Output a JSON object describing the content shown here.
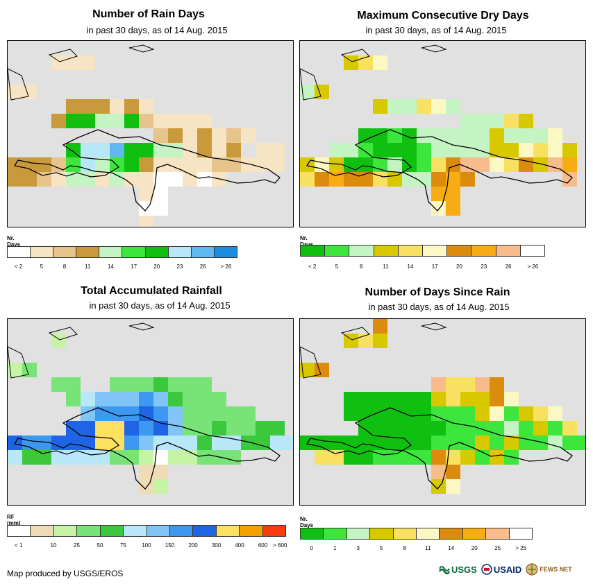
{
  "panels": [
    {
      "title": "Number of Rain Days",
      "subtitle": "in past 30 days, as of 14 Aug. 2015",
      "legend_title": "Nr. Days",
      "legend_colors": [
        "#ffffff",
        "#f6e4c4",
        "#e6c48c",
        "#c89a3c",
        "#c4f4c4",
        "#3ce63c",
        "#10c010",
        "#b8e8f8",
        "#60b8f0",
        "#1c8ce0"
      ],
      "legend_labels": [
        "< 2",
        "5",
        "8",
        "11",
        "14",
        "17",
        "20",
        "23",
        "26",
        "> 26"
      ],
      "ticks_mode": "center"
    },
    {
      "title": "Maximum Consecutive Dry Days",
      "subtitle": "in past 30 days, as of 14 Aug. 2015",
      "legend_title": "Nr. Days",
      "legend_colors": [
        "#10c010",
        "#3ce63c",
        "#c4f4c4",
        "#d8c800",
        "#f8e060",
        "#fcf8c4",
        "#dc8c0c",
        "#f8ac14",
        "#f8bc8c",
        "#ffffff"
      ],
      "legend_labels": [
        "< 2",
        "5",
        "8",
        "11",
        "14",
        "17",
        "20",
        "23",
        "26",
        "> 26"
      ],
      "ticks_mode": "center"
    },
    {
      "title": "Total Accumulated Rainfall",
      "subtitle": "in past 30 days, as of 14 Aug. 2015",
      "legend_title": "RF (mm)",
      "legend_colors": [
        "#ffffff",
        "#f0dcb4",
        "#c4f4a4",
        "#78e478",
        "#3cc83c",
        "#b8e8f8",
        "#80c4f8",
        "#3c98f0",
        "#1e64e4",
        "#fce060",
        "#f8a000",
        "#f83c0c"
      ],
      "legend_labels": [
        "< 1",
        "10",
        "25",
        "50",
        "75",
        "100",
        "150",
        "200",
        "300",
        "400",
        "600",
        "> 600"
      ],
      "ticks_mode": "boundary"
    },
    {
      "title": "Number of Days Since Rain",
      "subtitle": "in past 30 days, as of 14 Aug. 2015",
      "legend_title": "Nr. Days",
      "legend_colors": [
        "#10c010",
        "#3ce63c",
        "#c4f4c4",
        "#d8c800",
        "#f8e060",
        "#fcf8c4",
        "#dc8c0c",
        "#f8ac14",
        "#f8bc8c",
        "#ffffff"
      ],
      "legend_labels": [
        "0",
        "1",
        "3",
        "5",
        "8",
        "11",
        "14",
        "20",
        "25",
        "> 25"
      ],
      "ticks_mode": "center"
    }
  ],
  "footer": {
    "credit": "Map produced by USGS/EROS",
    "logos": [
      "USGS",
      "USAID",
      "FEWS NET"
    ]
  }
}
